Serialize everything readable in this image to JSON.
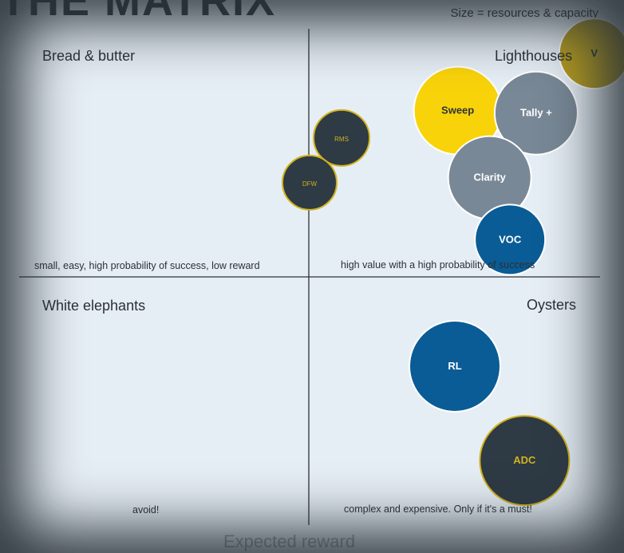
{
  "title": "THE MATRIX",
  "size_note": "Size = resources & capacity",
  "axis_label": "Expected reward",
  "quadrants": {
    "top_left": {
      "name": "Bread & butter",
      "desc": "small, easy, high probability of success, low reward"
    },
    "top_right": {
      "name": "Lighthouses",
      "desc": "high value with a high probability of success"
    },
    "bottom_left": {
      "name": "White elephants",
      "desc": "avoid!"
    },
    "bottom_right": {
      "name": "Oysters",
      "desc": "complex and expensive. Only if it's a must!"
    }
  },
  "chart_data": {
    "type": "scatter",
    "x_range": [
      0,
      10
    ],
    "y_range": [
      0,
      10
    ],
    "bubbles": [
      {
        "label": "V",
        "x": 9.9,
        "y": 9.5,
        "size": 44,
        "fill": "#b39a1e",
        "text": "#2c343b"
      },
      {
        "label": "Sweep",
        "x": 7.55,
        "y": 8.35,
        "size": 55,
        "fill": "#f9d30a",
        "text": "#2c343b"
      },
      {
        "label": "Tally +",
        "x": 8.9,
        "y": 8.3,
        "size": 52,
        "fill": "#788896",
        "text": "#ffffff"
      },
      {
        "label": "RMS",
        "x": 5.55,
        "y": 7.8,
        "size": 35,
        "fill": "#2e3a44",
        "text": "#d1b31e"
      },
      {
        "label": "DFW",
        "x": 5.0,
        "y": 6.9,
        "size": 34,
        "fill": "#2e3a44",
        "text": "#d1b31e"
      },
      {
        "label": "Clarity",
        "x": 8.1,
        "y": 7.0,
        "size": 52,
        "fill": "#788896",
        "text": "#ffffff"
      },
      {
        "label": "VOC",
        "x": 8.45,
        "y": 5.75,
        "size": 44,
        "fill": "#0a5c96",
        "text": "#ffffff"
      },
      {
        "label": "RL",
        "x": 7.5,
        "y": 3.2,
        "size": 57,
        "fill": "#0a5c96",
        "text": "#ffffff"
      },
      {
        "label": "ADC",
        "x": 8.7,
        "y": 1.3,
        "size": 56,
        "fill": "#2e3a44",
        "text": "#d1b31e"
      }
    ]
  }
}
